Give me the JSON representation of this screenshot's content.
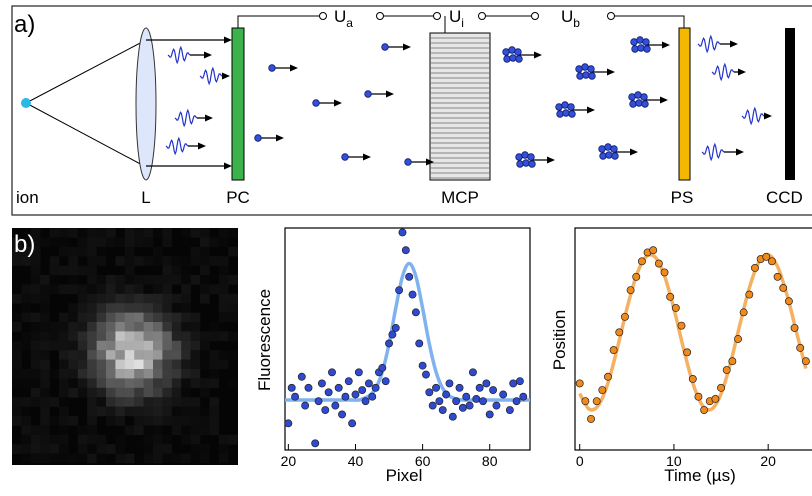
{
  "panel_a": {
    "label": "a)",
    "components": {
      "ion": "ion",
      "lens": "L",
      "photocathode": "PC",
      "mcp": "MCP",
      "phosphor_screen": "PS",
      "camera": "CCD"
    },
    "voltages": [
      {
        "symbol": "U",
        "subscript": "a"
      },
      {
        "symbol": "U",
        "subscript": "i"
      },
      {
        "symbol": "U",
        "subscript": "b"
      }
    ]
  },
  "panel_b": {
    "label": "b)"
  },
  "chart_data": [
    {
      "type": "scatter",
      "xlabel": "Pixel",
      "ylabel": "Fluorescence",
      "xlim": [
        19,
        92
      ],
      "ylim": [
        0,
        100
      ],
      "xticks": [
        20,
        40,
        60,
        80
      ],
      "series": [
        {
          "type": "scatter",
          "color": "#2f49d1",
          "x": [
            20,
            21,
            22,
            24,
            25,
            26,
            28,
            29,
            30,
            31,
            32,
            33,
            34,
            35,
            36,
            37,
            38,
            39,
            40,
            41,
            42,
            43,
            44,
            45,
            46,
            47,
            48,
            49,
            50,
            51,
            52,
            53,
            54,
            55,
            56,
            57,
            58,
            59,
            60,
            61,
            62,
            63,
            64,
            65,
            66,
            67,
            68,
            69,
            70,
            71,
            72,
            73,
            74,
            75,
            76,
            77,
            78,
            79,
            80,
            81,
            82,
            84,
            86,
            87,
            88,
            89,
            90
          ],
          "values": [
            12,
            28,
            24,
            33,
            20,
            28,
            3,
            22,
            30,
            18,
            26,
            35,
            20,
            28,
            16,
            24,
            31,
            12,
            25,
            35,
            27,
            22,
            30,
            24,
            28,
            35,
            37,
            31,
            48,
            52,
            55,
            72,
            98,
            90,
            78,
            70,
            62,
            48,
            38,
            34,
            26,
            20,
            28,
            22,
            18,
            25,
            30,
            15,
            22,
            28,
            19,
            24,
            20,
            35,
            23,
            28,
            22,
            30,
            16,
            27,
            20,
            25,
            18,
            30,
            22,
            31,
            24
          ]
        },
        {
          "type": "line",
          "color": "#7fb2ee",
          "x": [
            19,
            21,
            23,
            25,
            27,
            29,
            31,
            33,
            35,
            37,
            39,
            41,
            42,
            44,
            46,
            48,
            50,
            52,
            54,
            56,
            58,
            60,
            62,
            64,
            66,
            68,
            70,
            72,
            74,
            76,
            78,
            80,
            82,
            84,
            86,
            88,
            90,
            92
          ],
          "values": [
            22.5,
            22.5,
            22.5,
            22.5,
            22.5,
            22.5,
            22.5,
            22.5,
            22.5,
            22.5,
            22.5,
            22.5,
            23.0,
            24.3,
            27.7,
            35.2,
            47.8,
            63.9,
            78.2,
            84.0,
            78.2,
            63.9,
            47.8,
            35.2,
            27.7,
            24.3,
            23.0,
            22.5,
            22.5,
            22.5,
            22.5,
            22.5,
            22.5,
            22.5,
            22.5,
            22.5,
            22.5,
            22.5
          ]
        }
      ]
    },
    {
      "type": "scatter",
      "xlabel": "Time (µs)",
      "ylabel": "Position",
      "xlim": [
        -0.5,
        25.5
      ],
      "ylim": [
        0,
        100
      ],
      "xticks": [
        0,
        10,
        20
      ],
      "series": [
        {
          "type": "scatter",
          "color": "#f08a1c",
          "x": [
            0,
            0.6,
            1.2,
            1.8,
            2.4,
            3.0,
            3.6,
            4.2,
            4.8,
            5.4,
            6.0,
            6.6,
            7.2,
            7.8,
            8.4,
            9.0,
            9.6,
            10.2,
            10.8,
            11.4,
            12.0,
            12.6,
            13.2,
            13.8,
            14.4,
            15.0,
            15.6,
            16.2,
            16.8,
            17.4,
            18.0,
            18.6,
            19.2,
            19.8,
            20.4,
            21.0,
            21.6,
            22.2,
            22.8,
            23.4,
            24.0
          ],
          "values": [
            30,
            22,
            14,
            22,
            27,
            33,
            45,
            53,
            60,
            72,
            78,
            85,
            89,
            90,
            84,
            80,
            69,
            64,
            56,
            44,
            32,
            24,
            18,
            22,
            23,
            28,
            36,
            40,
            50,
            62,
            70,
            82,
            86,
            87,
            85,
            78,
            73,
            67,
            55,
            46,
            40
          ]
        },
        {
          "type": "line",
          "color": "#f5b062",
          "x": [
            0,
            1,
            2,
            3,
            4,
            5,
            6,
            7,
            8,
            9,
            10,
            11,
            12,
            13,
            14,
            15,
            16,
            17,
            18,
            19,
            20,
            21,
            22,
            23,
            24
          ],
          "values": [
            25.4,
            18.4,
            20.2,
            30.2,
            46.0,
            63.5,
            78.4,
            86.9,
            86.9,
            78.4,
            63.6,
            46.0,
            30.2,
            20.2,
            18.4,
            25.3,
            39.1,
            56.5,
            73.0,
            84.5,
            88.0,
            82.6,
            69.8,
            53.2,
            36.7
          ]
        }
      ]
    }
  ]
}
